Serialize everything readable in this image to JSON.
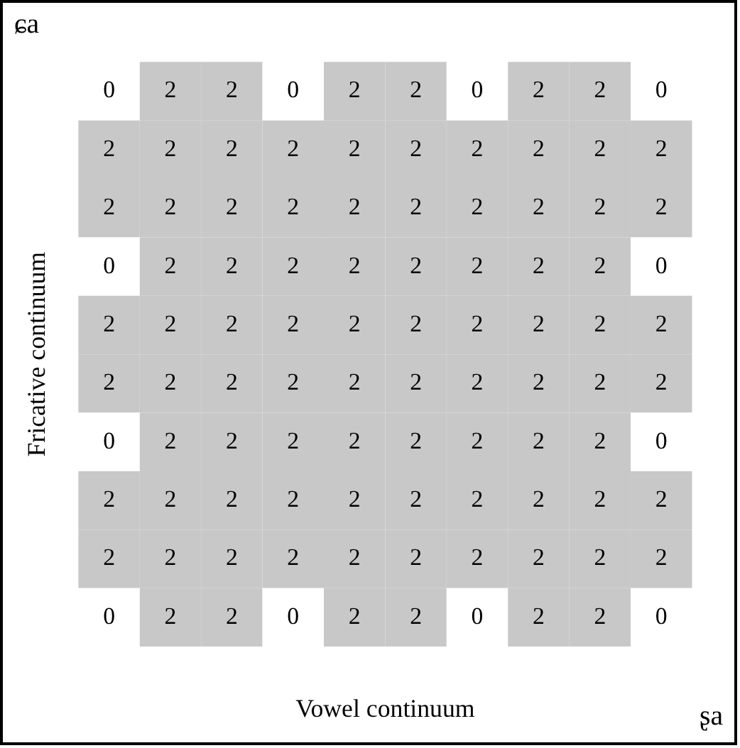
{
  "chart_data": {
    "type": "heatmap",
    "xlabel": "Vowel continuum",
    "ylabel": "Fricative continuum",
    "annotations": [
      "ɕa",
      "ʂa"
    ],
    "categories": [
      null,
      null,
      null,
      null,
      null,
      null,
      null,
      null,
      null,
      null
    ],
    "y_categories": [
      null,
      null,
      null,
      null,
      null,
      null,
      null,
      null,
      null,
      null
    ],
    "cells": [
      [
        0,
        2,
        2,
        0,
        2,
        2,
        0,
        2,
        2,
        0
      ],
      [
        2,
        2,
        2,
        2,
        2,
        2,
        2,
        2,
        2,
        2
      ],
      [
        2,
        2,
        2,
        2,
        2,
        2,
        2,
        2,
        2,
        2
      ],
      [
        0,
        2,
        2,
        2,
        2,
        2,
        2,
        2,
        2,
        0
      ],
      [
        2,
        2,
        2,
        2,
        2,
        2,
        2,
        2,
        2,
        2
      ],
      [
        2,
        2,
        2,
        2,
        2,
        2,
        2,
        2,
        2,
        2
      ],
      [
        0,
        2,
        2,
        2,
        2,
        2,
        2,
        2,
        2,
        0
      ],
      [
        2,
        2,
        2,
        2,
        2,
        2,
        2,
        2,
        2,
        2
      ],
      [
        2,
        2,
        2,
        2,
        2,
        2,
        2,
        2,
        2,
        2
      ],
      [
        0,
        2,
        2,
        0,
        2,
        2,
        0,
        2,
        2,
        0
      ]
    ],
    "colors": [
      "#ffffff",
      "#c8c8c8"
    ],
    "data_labels": true
  }
}
